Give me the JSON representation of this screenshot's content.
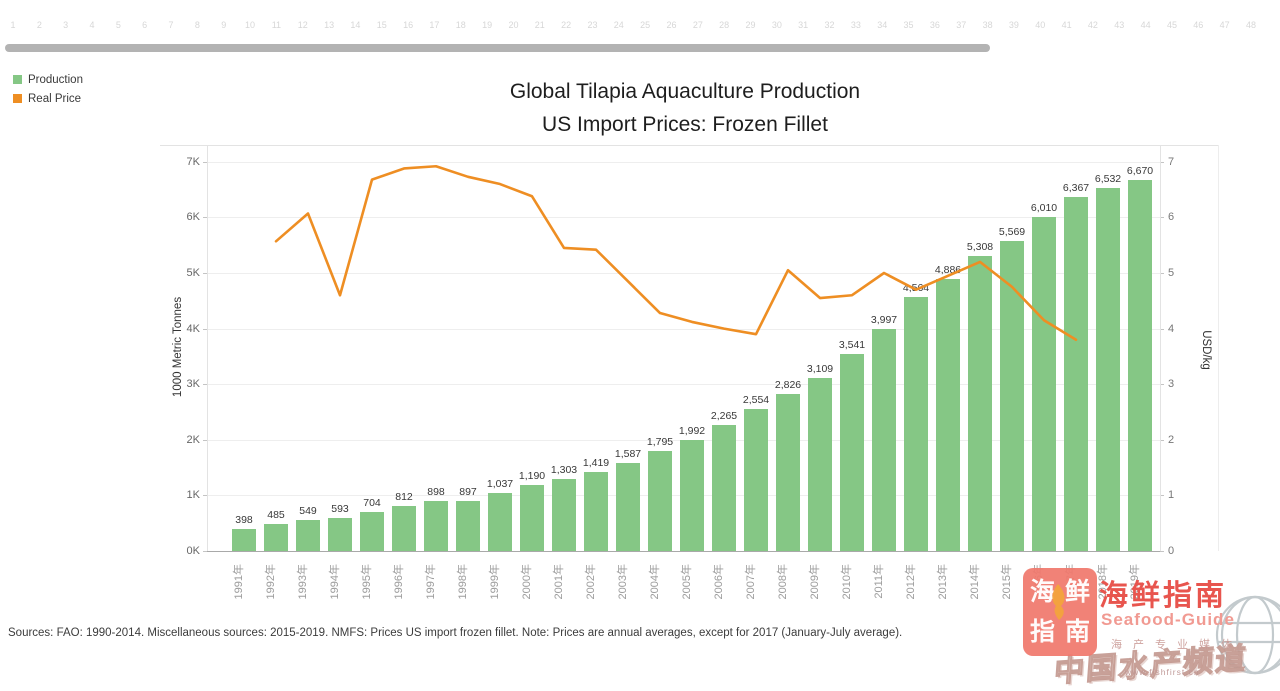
{
  "ruler": {
    "min": 1,
    "max": 48
  },
  "legend": {
    "items": [
      {
        "label": "Production",
        "color": "#85c785"
      },
      {
        "label": "Real Price",
        "color": "#ee8e23"
      }
    ]
  },
  "chart_data": {
    "type": "bar",
    "title": "Global Tilapia Aquaculture Production",
    "subtitle": "US Import Prices: Frozen Fillet",
    "categories": [
      "1991年",
      "1992年",
      "1993年",
      "1994年",
      "1995年",
      "1996年",
      "1997年",
      "1998年",
      "1999年",
      "2000年",
      "2001年",
      "2002年",
      "2003年",
      "2004年",
      "2005年",
      "2006年",
      "2007年",
      "2008年",
      "2009年",
      "2010年",
      "2011年",
      "2012年",
      "2013年",
      "2014年",
      "2015年",
      "2016年",
      "2017年",
      "2018年",
      "2019年"
    ],
    "series": [
      {
        "name": "Production",
        "type": "bar",
        "axis": "left",
        "color": "#85c785",
        "values": [
          398,
          485,
          549,
          593,
          704,
          812,
          898,
          897,
          1037,
          1190,
          1303,
          1419,
          1587,
          1795,
          1992,
          2265,
          2554,
          2826,
          3109,
          3541,
          3997,
          4564,
          4886,
          5308,
          5569,
          6010,
          6367,
          6532,
          6670
        ]
      },
      {
        "name": "Real Price",
        "type": "line",
        "axis": "right",
        "color": "#ee8e23",
        "values": [
          null,
          5.57,
          6.07,
          4.6,
          6.68,
          6.88,
          6.92,
          6.73,
          6.6,
          6.38,
          5.45,
          5.42,
          4.85,
          4.28,
          4.12,
          4.0,
          3.9,
          5.05,
          4.55,
          4.6,
          5.0,
          4.7,
          4.95,
          5.2,
          4.75,
          4.15,
          3.8,
          null,
          null
        ]
      }
    ],
    "ylabel_left": "1000 Metric Tonnes",
    "ylabel_right": "USD/kg",
    "yticks_left": [
      "0K",
      "1K",
      "2K",
      "3K",
      "4K",
      "5K",
      "6K",
      "7K"
    ],
    "yticks_right": [
      "0",
      "1",
      "2",
      "3",
      "4",
      "5",
      "6",
      "7"
    ],
    "ylim_left": [
      0,
      7000
    ],
    "ylim_right": [
      0,
      7
    ],
    "grid": true,
    "legend_position": "top-left"
  },
  "footer": {
    "text": "Sources: FAO: 1990-2014. Miscellaneous sources: 2015-2019. NMFS: Prices US import frozen fillet. Note: Prices are annual averages, except for 2017 (January-July average)."
  },
  "watermark": {
    "seal_text": "海鲜指南",
    "brand_cn": "海鲜指南",
    "brand_en": "Seafood-Guide",
    "tagline": "海产专业媒体",
    "channel": "中国水产频道",
    "url": "www.fishfirst.cn"
  }
}
